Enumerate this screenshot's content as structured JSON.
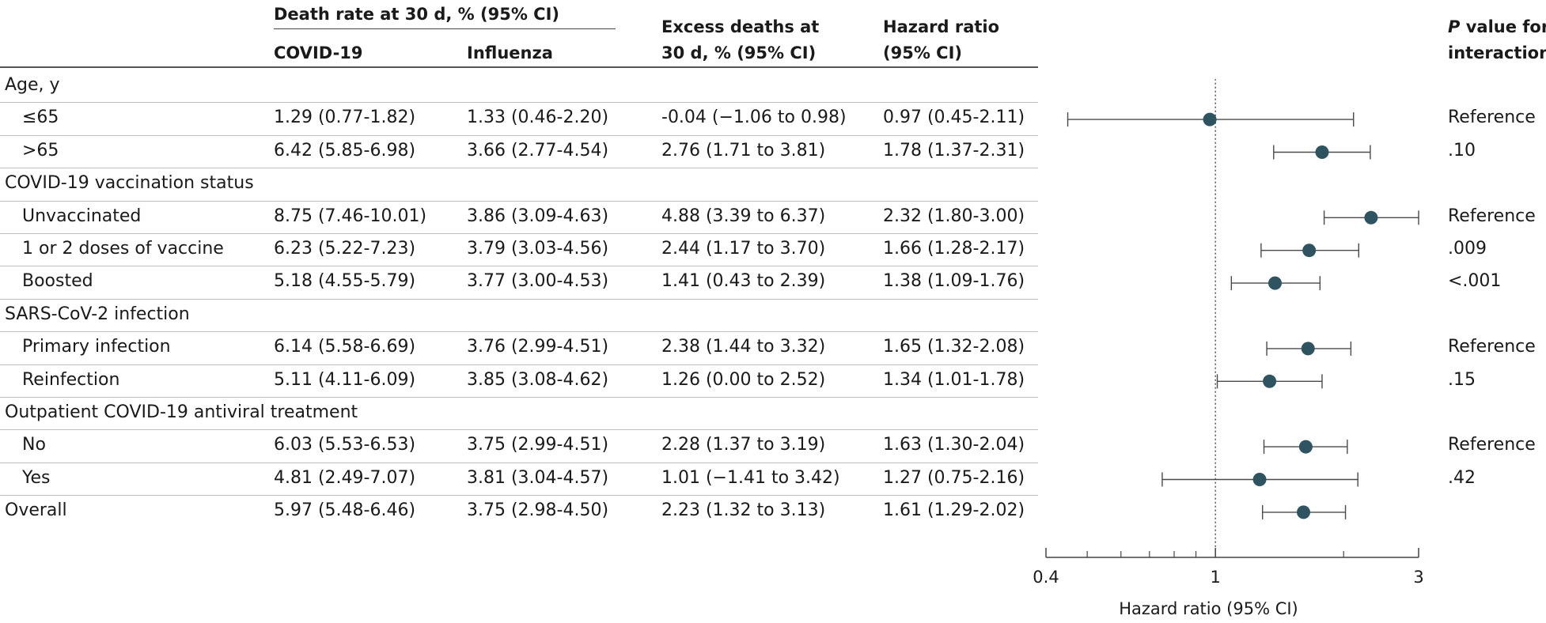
{
  "headers": {
    "death_rate_group": "Death rate at 30 d, % (95% CI)",
    "covid": "COVID-19",
    "influenza": "Influenza",
    "excess_line1": "Excess deaths at",
    "excess_line2": "30 d, % (95% CI)",
    "hr_line1": "Hazard ratio",
    "hr_line2": "(95% CI)",
    "p_line1_italic": "P",
    "p_line1_rest": " value for",
    "p_line2": "interaction"
  },
  "rows": [
    {
      "label": "Age, y",
      "type": "section"
    },
    {
      "label": "≤65",
      "type": "item",
      "covid": "1.29 (0.77-1.82)",
      "flu": "1.33 (0.46-2.20)",
      "excess": "-0.04 (−1.06 to 0.98)",
      "hr": "0.97 (0.45-2.11)",
      "p": "Reference"
    },
    {
      "label": ">65",
      "type": "item",
      "covid": "6.42 (5.85-6.98)",
      "flu": "3.66 (2.77-4.54)",
      "excess": "2.76 (1.71 to 3.81)",
      "hr": "1.78 (1.37-2.31)",
      "p": ".10"
    },
    {
      "label": "COVID-19 vaccination status",
      "type": "section"
    },
    {
      "label": "Unvaccinated",
      "type": "item",
      "covid": "8.75 (7.46-10.01)",
      "flu": "3.86 (3.09-4.63)",
      "excess": "4.88 (3.39 to 6.37)",
      "hr": "2.32 (1.80-3.00)",
      "p": "Reference"
    },
    {
      "label": "1 or 2 doses of vaccine",
      "type": "item",
      "covid": "6.23 (5.22-7.23)",
      "flu": "3.79 (3.03-4.56)",
      "excess": "2.44 (1.17 to 3.70)",
      "hr": "1.66 (1.28-2.17)",
      "p": ".009"
    },
    {
      "label": "Boosted",
      "type": "item",
      "covid": "5.18 (4.55-5.79)",
      "flu": "3.77 (3.00-4.53)",
      "excess": "1.41 (0.43 to 2.39)",
      "hr": "1.38 (1.09-1.76)",
      "p": "<.001"
    },
    {
      "label": "SARS-CoV-2 infection",
      "type": "section"
    },
    {
      "label": "Primary infection",
      "type": "item",
      "covid": "6.14 (5.58-6.69)",
      "flu": "3.76 (2.99-4.51)",
      "excess": "2.38 (1.44 to 3.32)",
      "hr": "1.65 (1.32-2.08)",
      "p": "Reference"
    },
    {
      "label": "Reinfection",
      "type": "item",
      "covid": "5.11 (4.11-6.09)",
      "flu": "3.85 (3.08-4.62)",
      "excess": "1.26 (0.00 to 2.52)",
      "hr": "1.34 (1.01-1.78)",
      "p": ".15"
    },
    {
      "label": "Outpatient COVID-19 antiviral treatment",
      "type": "section"
    },
    {
      "label": "No",
      "type": "item",
      "covid": "6.03 (5.53-6.53)",
      "flu": "3.75 (2.99-4.51)",
      "excess": "2.28 (1.37 to 3.19)",
      "hr": "1.63 (1.30-2.04)",
      "p": "Reference"
    },
    {
      "label": "Yes",
      "type": "item",
      "covid": "4.81 (2.49-7.07)",
      "flu": "3.81 (3.04-4.57)",
      "excess": "1.01 (−1.41 to 3.42)",
      "hr": "1.27 (0.75-2.16)",
      "p": ".42"
    },
    {
      "label": "Overall",
      "type": "overall",
      "covid": "5.97 (5.48-6.46)",
      "flu": "3.75 (2.98-4.50)",
      "excess": "2.23 (1.32 to 3.13)",
      "hr": "1.61 (1.29-2.02)",
      "p": ""
    }
  ],
  "chart_data": {
    "type": "forest",
    "xlabel": "Hazard ratio (95% CI)",
    "xscale": "log",
    "xlim": [
      0.4,
      3
    ],
    "major_ticks": [
      0.4,
      1,
      3
    ],
    "major_tick_labels": [
      "0.4",
      "1",
      "3"
    ],
    "minor_ticks": [
      0.5,
      0.6,
      0.7,
      0.8,
      0.9,
      2
    ],
    "reference_line": 1,
    "point_color": "#2f5461",
    "line_color": "#4a4a4a",
    "points": [
      {
        "row": 1,
        "hr": 0.97,
        "lower": 0.45,
        "upper": 2.11
      },
      {
        "row": 2,
        "hr": 1.78,
        "lower": 1.37,
        "upper": 2.31
      },
      {
        "row": 4,
        "hr": 2.32,
        "lower": 1.8,
        "upper": 3.0
      },
      {
        "row": 5,
        "hr": 1.66,
        "lower": 1.28,
        "upper": 2.17
      },
      {
        "row": 6,
        "hr": 1.38,
        "lower": 1.09,
        "upper": 1.76
      },
      {
        "row": 8,
        "hr": 1.65,
        "lower": 1.32,
        "upper": 2.08
      },
      {
        "row": 9,
        "hr": 1.34,
        "lower": 1.01,
        "upper": 1.78
      },
      {
        "row": 11,
        "hr": 1.63,
        "lower": 1.3,
        "upper": 2.04
      },
      {
        "row": 12,
        "hr": 1.27,
        "lower": 0.75,
        "upper": 2.16
      },
      {
        "row": 13,
        "hr": 1.61,
        "lower": 1.29,
        "upper": 2.02
      }
    ]
  }
}
